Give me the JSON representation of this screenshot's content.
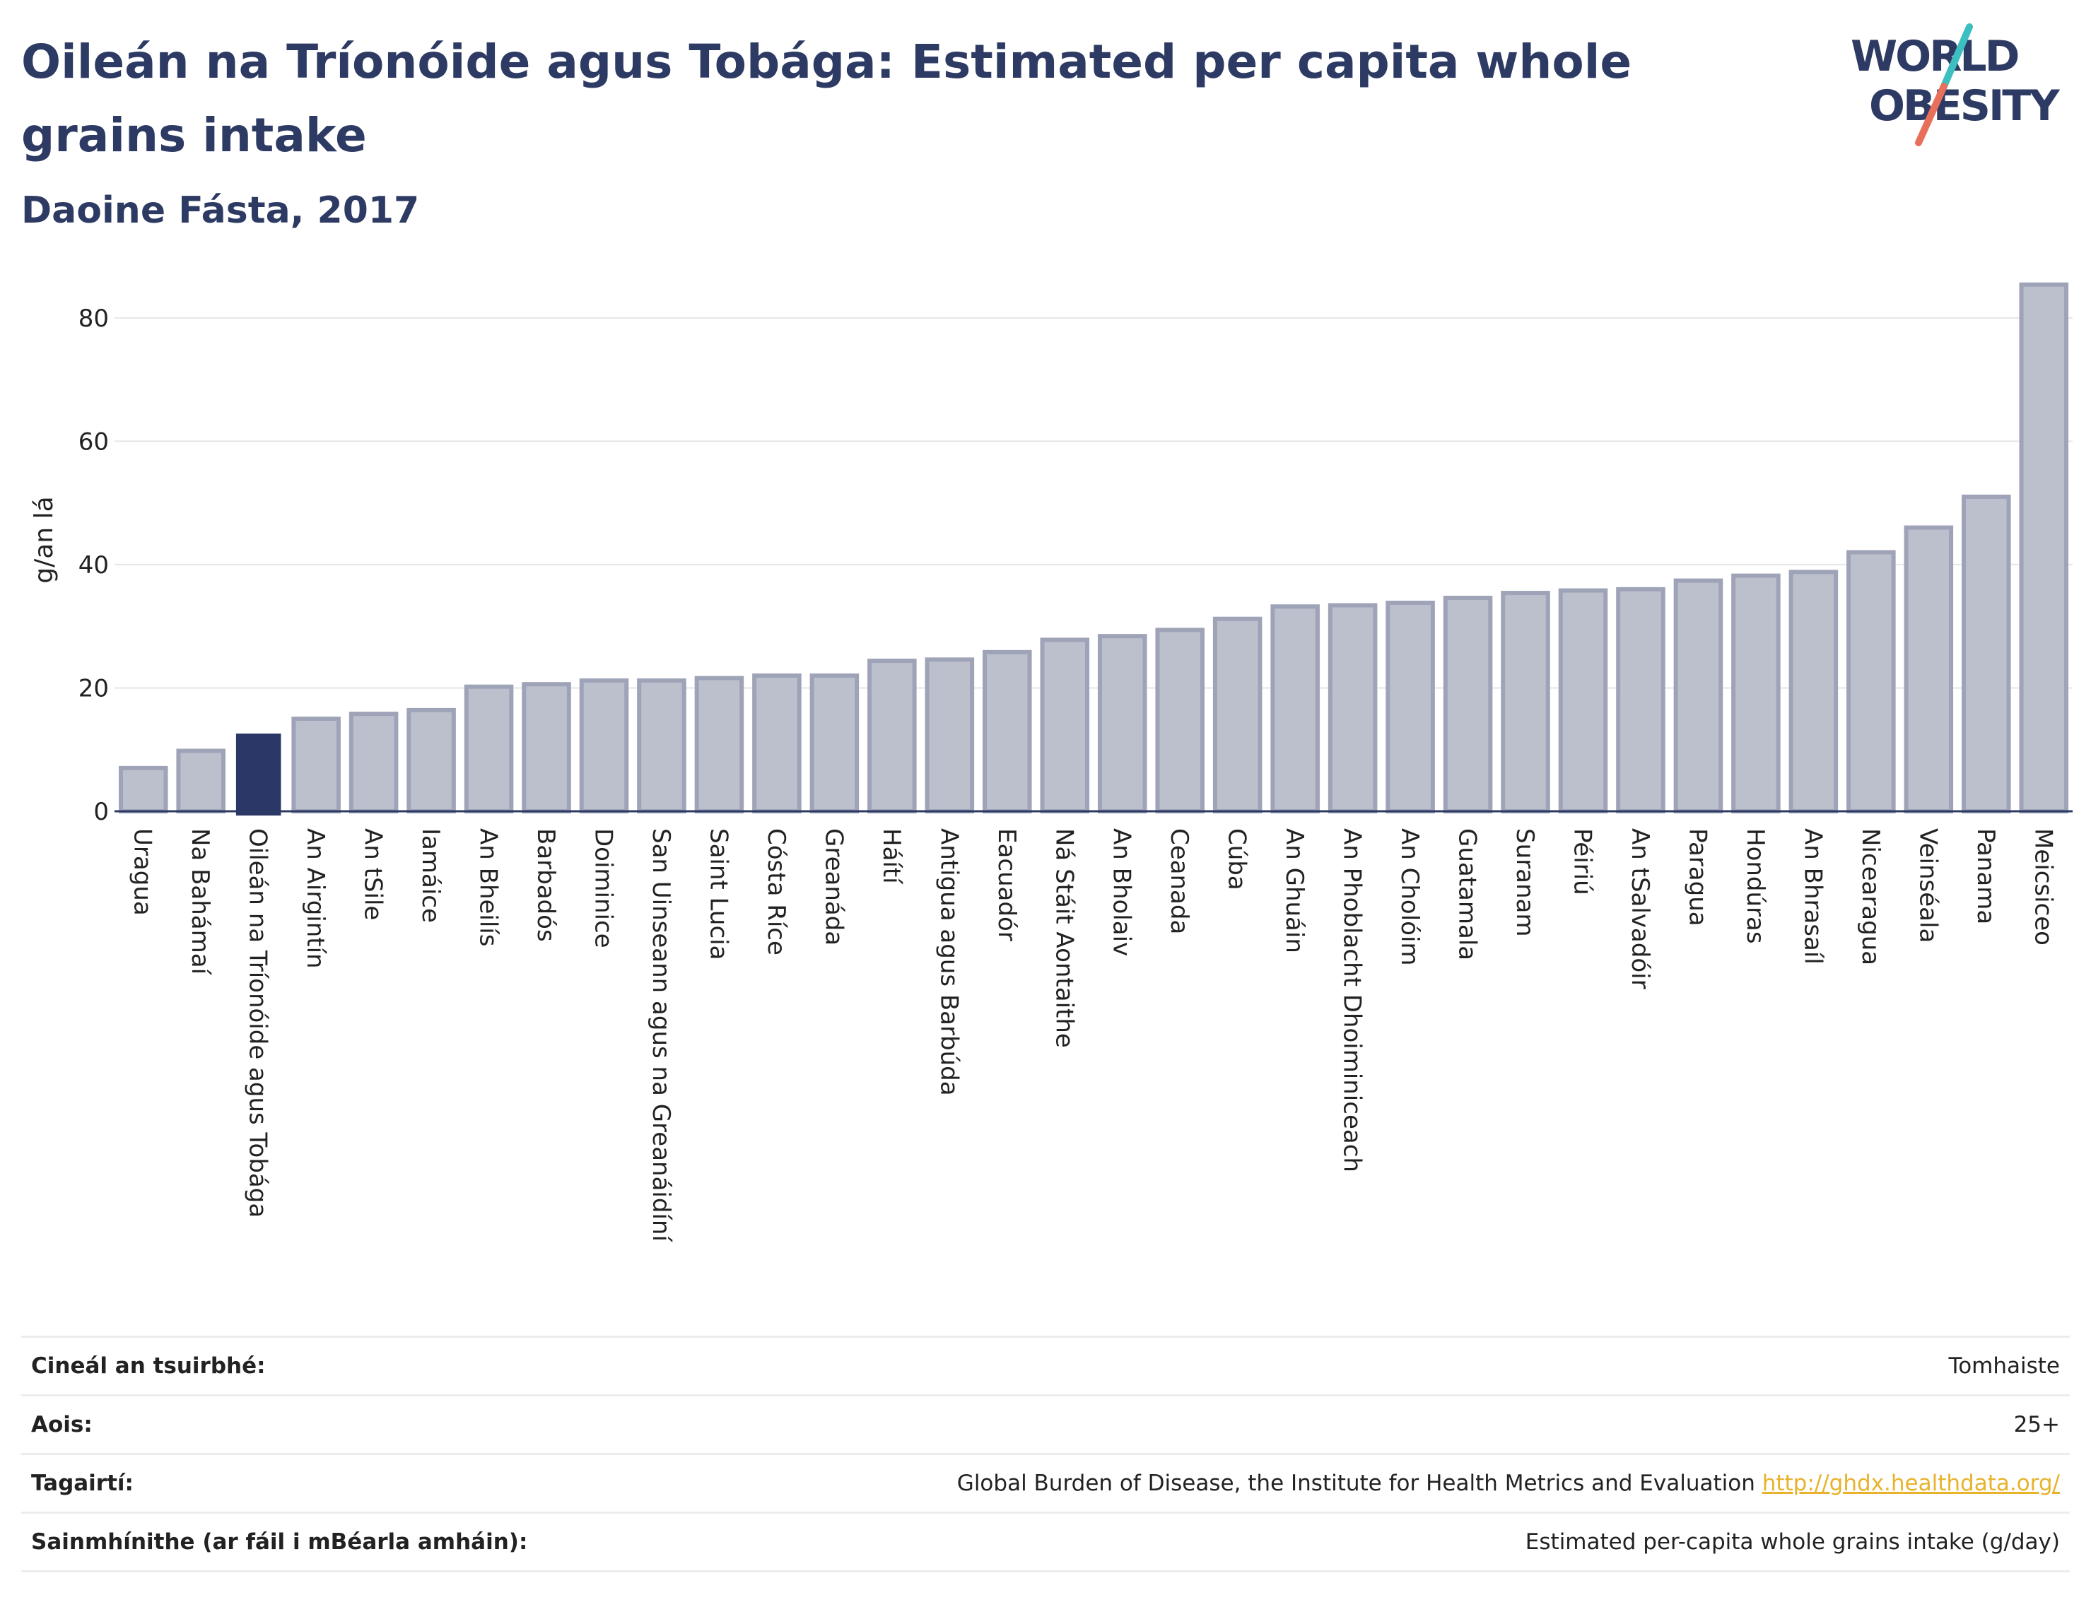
{
  "title": "Oileán na Tríonóide agus Tobága: Estimated per capita whole grains intake",
  "subtitle": "Daoine Fásta, 2017",
  "logo": {
    "line1": "WORLD",
    "line2": "OBESITY"
  },
  "colors": {
    "title": "#2d3a63",
    "highlight_bar": "#2b3766",
    "bar_fill": "#bcc0cd",
    "bar_stroke": "#9ea3b8",
    "logo_teal": "#3dbfc2",
    "logo_coral": "#e8705a",
    "link": "#e8b32b"
  },
  "chart_data": {
    "type": "bar",
    "ylabel": "g/an lá",
    "xlabel": "",
    "ylim": [
      0,
      88
    ],
    "yticks": [
      0,
      20,
      40,
      60,
      80
    ],
    "grid": true,
    "highlight": "Oileán na Tríonóide agus Tobága",
    "categories": [
      "Uragua",
      "Na Bahámaí",
      "Oileán na Tríonóide agus Tobága",
      "An Airgintín",
      "An tSile",
      "Iamáice",
      "An Bheilís",
      "Barbadós",
      "Doiminice",
      "San Uinseann agus na Greanáidíní",
      "Saint Lucia",
      "Cósta Ríce",
      "Greanáda",
      "Háítí",
      "Antigua agus Barbúda",
      "Eacuadór",
      "Ná Stáit Aontaithe",
      "An Bholaiv",
      "Ceanada",
      "Cúba",
      "An Ghuáin",
      "An Phoblacht Dhoiminiceach",
      "An Cholóim",
      "Guatamala",
      "Suranam",
      "Péiriú",
      "An tSalvadóir",
      "Paragua",
      "Hondúras",
      "An Bhrasaíl",
      "Nicearagua",
      "Veinséala",
      "Panama",
      "Meicsiceo"
    ],
    "values": [
      7.0,
      9.8,
      12.6,
      15.0,
      15.8,
      16.4,
      20.2,
      20.6,
      21.2,
      21.2,
      21.6,
      22.0,
      22.0,
      24.4,
      24.6,
      25.8,
      27.8,
      28.4,
      29.4,
      31.2,
      33.2,
      33.4,
      33.8,
      34.6,
      35.4,
      35.8,
      36.0,
      37.4,
      38.2,
      38.8,
      42.0,
      46.0,
      51.0,
      85.4
    ]
  },
  "info": {
    "rows": [
      {
        "label": "Cineál an tsuirbhé:",
        "value": "Tomhaiste"
      },
      {
        "label": "Aois:",
        "value": "25+"
      },
      {
        "label": "Tagairtí:",
        "value": "Global Burden of Disease, the Institute for Health Metrics and Evaluation",
        "link": "http://ghdx.healthdata.org/"
      },
      {
        "label": "Sainmhínithe (ar fáil i mBéarla amháin):",
        "value": "Estimated per-capita whole grains intake (g/day)"
      }
    ]
  }
}
